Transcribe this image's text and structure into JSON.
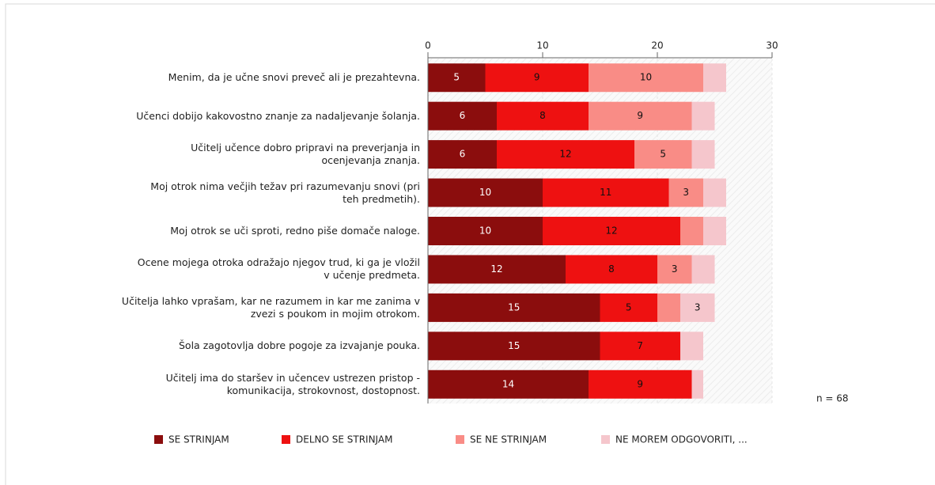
{
  "chart_data": {
    "type": "stacked_barh",
    "categories": [
      "Menim, da je učne snovi preveč ali je prezahtevna.",
      "Učenci dobijo kakovostno znanje za nadaljevanje šolanja.",
      "Učitelj učence dobro pripravi na preverjanja in\nocenjevanja znanja.",
      "Moj otrok nima večjih težav pri razumevanju snovi (pri\nteh predmetih).",
      "Moj otrok se uči sproti, redno piše domače naloge.",
      "Ocene mojega otroka odražajo njegov trud, ki ga je vložil\nv učenje predmeta.",
      "Učitelja lahko vprašam, kar ne razumem in kar me zanima v\nzvezi s poukom in mojim otrokom.",
      "Šola zagotovlja dobre pogoje za izvajanje pouka.",
      "Učitelj ima do staršev in učencev ustrezen pristop -\nkomunikacija, strokovnost, dostopnost."
    ],
    "series": [
      {
        "name": "SE STRINJAM",
        "color": "#8b0d0d",
        "values": [
          5,
          6,
          6,
          10,
          10,
          12,
          15,
          15,
          14
        ],
        "value_labels": [
          "5",
          "6",
          "6",
          "10",
          "10",
          "12",
          "15",
          "15",
          "14"
        ]
      },
      {
        "name": "DELNO SE STRINJAM",
        "color": "#ee1111",
        "values": [
          9,
          8,
          12,
          11,
          12,
          8,
          5,
          7,
          9
        ],
        "value_labels": [
          "9",
          "8",
          "12",
          "11",
          "12",
          "8",
          "5",
          "7",
          "9"
        ]
      },
      {
        "name": "SE NE STRINJAM",
        "color": "#f98c86",
        "values": [
          10,
          9,
          5,
          3,
          2,
          3,
          2,
          0,
          0
        ],
        "value_labels": [
          "10",
          "9",
          "5",
          "3",
          null,
          "3",
          null,
          null,
          null
        ]
      },
      {
        "name": "NE MOREM ODGOVORITI, ...",
        "color": "#f5c6cc",
        "values": [
          2,
          2,
          2,
          2,
          2,
          2,
          3,
          2,
          1
        ],
        "value_labels": [
          null,
          null,
          null,
          null,
          null,
          null,
          "3",
          null,
          null
        ]
      }
    ],
    "xlim": [
      0,
      30
    ],
    "xticks": [
      0,
      10,
      20,
      30
    ],
    "annotation": "n = 68",
    "legend": "bottom"
  }
}
